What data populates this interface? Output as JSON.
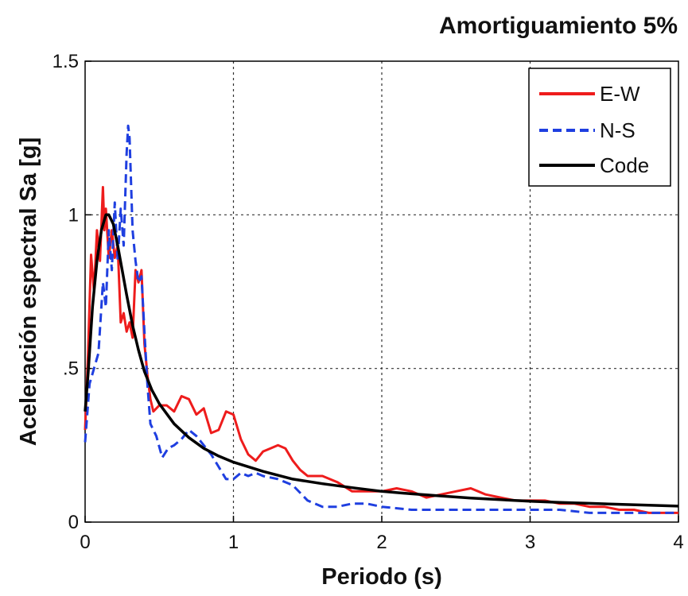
{
  "chart_data": {
    "type": "line",
    "title": "Amortiguamiento 5%",
    "xlabel": "Periodo (s)",
    "ylabel": "Aceleración espectral Sa [g]",
    "xlim": [
      0,
      4
    ],
    "ylim": [
      0,
      1.5
    ],
    "xticks": [
      0,
      1,
      2,
      3,
      4
    ],
    "xtick_labels": [
      "0",
      "1",
      "2",
      "3",
      "4"
    ],
    "yticks": [
      0,
      0.5,
      1,
      1.5
    ],
    "ytick_labels": [
      "0",
      ".5",
      "1",
      "1.5"
    ],
    "grid": true,
    "legend": "top-right",
    "series": [
      {
        "name": "E-W",
        "color": "#ee1c1c",
        "dash": "solid",
        "x": [
          0,
          0.02,
          0.04,
          0.06,
          0.08,
          0.1,
          0.12,
          0.13,
          0.14,
          0.16,
          0.18,
          0.2,
          0.22,
          0.24,
          0.26,
          0.28,
          0.3,
          0.32,
          0.34,
          0.36,
          0.38,
          0.4,
          0.42,
          0.44,
          0.46,
          0.5,
          0.55,
          0.6,
          0.65,
          0.7,
          0.75,
          0.8,
          0.85,
          0.9,
          0.95,
          1.0,
          1.05,
          1.1,
          1.15,
          1.2,
          1.25,
          1.3,
          1.35,
          1.4,
          1.45,
          1.5,
          1.6,
          1.7,
          1.8,
          1.9,
          2.0,
          2.1,
          2.2,
          2.3,
          2.4,
          2.5,
          2.6,
          2.65,
          2.7,
          2.8,
          2.9,
          3.0,
          3.1,
          3.2,
          3.3,
          3.4,
          3.5,
          3.6,
          3.7,
          3.8,
          3.9,
          4.0
        ],
        "y": [
          0.3,
          0.55,
          0.87,
          0.75,
          0.95,
          0.85,
          1.09,
          0.95,
          1.02,
          0.86,
          0.95,
          0.86,
          0.9,
          0.65,
          0.68,
          0.62,
          0.65,
          0.6,
          0.82,
          0.78,
          0.82,
          0.58,
          0.48,
          0.4,
          0.36,
          0.38,
          0.38,
          0.36,
          0.41,
          0.4,
          0.35,
          0.37,
          0.29,
          0.3,
          0.36,
          0.35,
          0.27,
          0.22,
          0.2,
          0.23,
          0.24,
          0.25,
          0.24,
          0.2,
          0.17,
          0.15,
          0.15,
          0.13,
          0.1,
          0.1,
          0.1,
          0.11,
          0.1,
          0.08,
          0.09,
          0.1,
          0.11,
          0.1,
          0.09,
          0.08,
          0.07,
          0.07,
          0.07,
          0.06,
          0.06,
          0.05,
          0.05,
          0.04,
          0.04,
          0.03,
          0.03,
          0.03
        ]
      },
      {
        "name": "N-S",
        "color": "#1f3fe0",
        "dash": "dashed",
        "x": [
          0,
          0.03,
          0.06,
          0.09,
          0.12,
          0.14,
          0.16,
          0.18,
          0.2,
          0.22,
          0.24,
          0.26,
          0.28,
          0.29,
          0.3,
          0.32,
          0.34,
          0.36,
          0.38,
          0.4,
          0.42,
          0.44,
          0.48,
          0.52,
          0.56,
          0.6,
          0.65,
          0.7,
          0.75,
          0.8,
          0.85,
          0.9,
          0.95,
          1.0,
          1.05,
          1.1,
          1.15,
          1.2,
          1.3,
          1.4,
          1.5,
          1.6,
          1.7,
          1.8,
          1.9,
          2.0,
          2.2,
          2.4,
          2.6,
          2.8,
          3.0,
          3.2,
          3.4,
          3.6,
          3.8,
          4.0
        ],
        "y": [
          0.26,
          0.45,
          0.5,
          0.55,
          0.78,
          0.7,
          0.95,
          0.82,
          1.04,
          0.85,
          1.02,
          0.9,
          1.2,
          1.29,
          1.25,
          0.95,
          0.85,
          0.78,
          0.8,
          0.62,
          0.45,
          0.32,
          0.28,
          0.21,
          0.24,
          0.25,
          0.27,
          0.3,
          0.28,
          0.25,
          0.22,
          0.18,
          0.14,
          0.14,
          0.16,
          0.15,
          0.16,
          0.15,
          0.14,
          0.12,
          0.07,
          0.05,
          0.05,
          0.06,
          0.06,
          0.05,
          0.04,
          0.04,
          0.04,
          0.04,
          0.04,
          0.04,
          0.03,
          0.03,
          0.03,
          0.03
        ]
      },
      {
        "name": "Code",
        "color": "#000000",
        "dash": "solid",
        "x": [
          0,
          0.02,
          0.05,
          0.08,
          0.11,
          0.14,
          0.16,
          0.19,
          0.22,
          0.25,
          0.28,
          0.32,
          0.36,
          0.4,
          0.45,
          0.5,
          0.6,
          0.7,
          0.8,
          0.9,
          1.0,
          1.2,
          1.4,
          1.6,
          1.8,
          2.0,
          2.2,
          2.4,
          2.6,
          2.8,
          3.0,
          3.2,
          3.4,
          3.6,
          3.8,
          4.0
        ],
        "y": [
          0.36,
          0.48,
          0.7,
          0.85,
          0.95,
          1.0,
          1.0,
          0.97,
          0.9,
          0.82,
          0.74,
          0.64,
          0.56,
          0.49,
          0.43,
          0.385,
          0.32,
          0.275,
          0.24,
          0.215,
          0.195,
          0.165,
          0.14,
          0.125,
          0.112,
          0.1,
          0.092,
          0.085,
          0.078,
          0.073,
          0.068,
          0.064,
          0.061,
          0.058,
          0.055,
          0.052
        ]
      }
    ]
  }
}
